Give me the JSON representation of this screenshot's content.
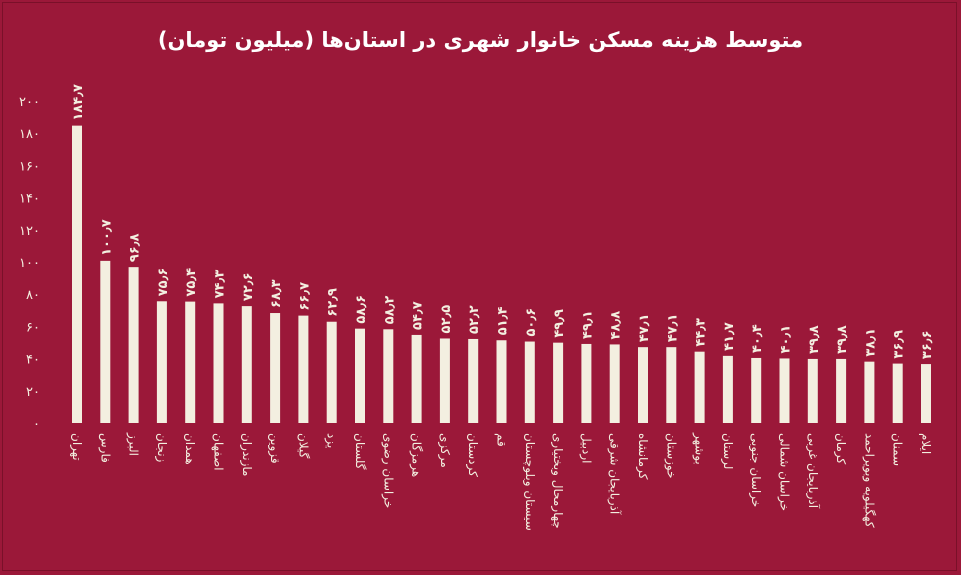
{
  "chart_data": {
    "type": "bar",
    "title": "متوسط هزینه مسکن خانوار شهری در استان‌ها (میلیون تومان)",
    "xlabel": "",
    "ylabel": "",
    "ylim": [
      0,
      200
    ],
    "yticks": [
      0,
      20,
      40,
      60,
      80,
      100,
      120,
      140,
      160,
      180,
      200
    ],
    "ytick_labels": [
      "۰",
      "۲۰",
      "۴۰",
      "۶۰",
      "۸۰",
      "۱۰۰",
      "۱۲۰",
      "۱۴۰",
      "۱۶۰",
      "۱۸۰",
      "۲۰۰"
    ],
    "grid": false,
    "legend": "none",
    "colors": {
      "background": "#9b1839",
      "bar": "#f3efe0",
      "text": "#ffffff"
    },
    "categories": [
      "تهران",
      "فارس",
      "البرز",
      "زنجان",
      "همدان",
      "اصفهان",
      "مازندران",
      "قزوین",
      "گیلان",
      "یزد",
      "گلستان",
      "خراسان رضوی",
      "هرمزگان",
      "مرکزی",
      "کردستان",
      "قم",
      "سیستان وبلوچستان",
      "چهارمحال وبختیاری",
      "اردبیل",
      "آذربایجان شرقی",
      "کرمانشاه",
      "خوزستان",
      "بوشهر",
      "لرستان",
      "خراسان جنوبی",
      "خراسان شمالی",
      "آذربایجان غربی",
      "کرمان",
      "کهگیلویه وبویراحمد",
      "سمنان",
      "ایلام"
    ],
    "values": [
      184.7,
      100.7,
      96.8,
      75.6,
      75.4,
      74.3,
      72.6,
      68.3,
      66.7,
      62.9,
      58.6,
      58.2,
      54.7,
      52.5,
      52.2,
      51.4,
      50.6,
      49.9,
      49.1,
      48.8,
      47.1,
      47.1,
      44.3,
      41.7,
      40.4,
      40.1,
      39.8,
      39.8,
      38.1,
      36.9,
      36.6
    ],
    "value_labels": [
      "۱۸۴٫۷",
      "۱۰۰٫۷",
      "۹۶٫۸",
      "۷۵٫۶",
      "۷۵٫۴",
      "۷۴٫۳",
      "۷۲٫۶",
      "۶۸٫۳",
      "۶۶٫۷",
      "۶۲٫۹",
      "۵۸٫۶",
      "۵۸٫۲",
      "۵۴٫۷",
      "۵۲٫۵",
      "۵۲٫۲",
      "۵۱٫۴",
      "۵۰٫۶",
      "۴۹٫۹",
      "۴۹٫۱",
      "۴۸٫۸",
      "۴۷٫۱",
      "۴۷٫۱",
      "۴۴٫۳",
      "۴۱٫۷",
      "۴۰٫۴",
      "۴۰٫۱",
      "۳۹٫۸",
      "۳۹٫۸",
      "۳۸٫۱",
      "۳۶٫۹",
      "۳۶٫۶"
    ]
  }
}
